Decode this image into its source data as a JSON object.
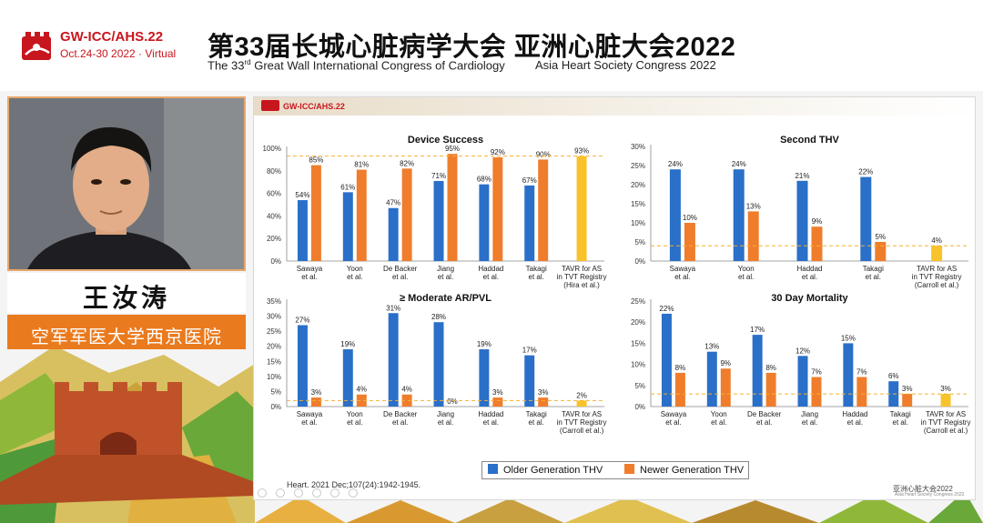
{
  "header": {
    "logo_line1": "GW-ICC/AHS.22",
    "logo_line2": "Oct.24-30 2022 · Virtual",
    "title_cn": "第33届长城心脏病学大会  亚洲心脏大会2022",
    "title_en1_pre": "The 33",
    "title_en1_sup": "rd",
    "title_en1_post": " Great Wall International Congress of Cardiology",
    "title_en2": "Asia Heart Society Congress 2022",
    "accent": "#c8161e"
  },
  "speaker": {
    "name": "王汝涛",
    "affiliation": "空军军医大学西京医院"
  },
  "slide": {
    "logo": "GW-ICC/AHS.22",
    "legend": [
      {
        "label": "Older Generation THV",
        "color": "#2a6fc8"
      },
      {
        "label": "Newer Generation THV",
        "color": "#ef7d2c"
      }
    ],
    "citation": "Heart. 2021 Dec;107(24):1942-1945.",
    "footer_logo": "亚洲心脏大会2022",
    "footer_sub": "Asia Heart Society Congress 2022"
  },
  "chart_data": [
    {
      "type": "bar",
      "title": "Device Success",
      "categories": [
        "Sawaya\net al.",
        "Yoon\net al.",
        "De Backer\net al.",
        "Jiang\net al.",
        "Haddad\net al.",
        "Takagi\net al.",
        "TAVR for AS\nin TVT Registry\n(Hira et al.)"
      ],
      "series": [
        {
          "name": "Older Generation THV",
          "values": [
            54,
            61,
            47,
            71,
            68,
            67,
            null
          ]
        },
        {
          "name": "Newer Generation THV",
          "values": [
            85,
            81,
            82,
            95,
            92,
            90,
            null
          ]
        },
        {
          "name": "TAVR",
          "values": [
            null,
            null,
            null,
            null,
            null,
            null,
            93
          ]
        }
      ],
      "reference_line": 93,
      "ylim": [
        0,
        100
      ],
      "yticks": [
        "0%",
        "20%",
        "40%",
        "60%",
        "80%",
        "100%"
      ],
      "value_suffix": "%"
    },
    {
      "type": "bar",
      "title": "Second THV",
      "categories": [
        "Sawaya\net al.",
        "Yoon\net al.",
        "Haddad\net al.",
        "Takagi\net al.",
        "TAVR for AS\nin TVT Registry\n(Carroll et al.)"
      ],
      "series": [
        {
          "name": "Older Generation THV",
          "values": [
            24,
            24,
            21,
            22,
            null
          ]
        },
        {
          "name": "Newer Generation THV",
          "values": [
            10,
            13,
            9,
            5,
            null
          ]
        },
        {
          "name": "TAVR",
          "values": [
            null,
            null,
            null,
            null,
            4
          ]
        }
      ],
      "reference_line": 4,
      "ylim": [
        0,
        30
      ],
      "yticks": [
        "0%",
        "5%",
        "10%",
        "15%",
        "20%",
        "25%",
        "30%"
      ],
      "value_suffix": "%"
    },
    {
      "type": "bar",
      "title": "≥ Moderate AR/PVL",
      "categories": [
        "Sawaya\net al.",
        "Yoon\net al.",
        "De Backer\net al.",
        "Jiang\net al.",
        "Haddad\net al.",
        "Takagi\net al.",
        "TAVR for AS\nin TVT Registry\n(Carroll et al.)"
      ],
      "series": [
        {
          "name": "Older Generation THV",
          "values": [
            27,
            19,
            31,
            28,
            19,
            17,
            null
          ]
        },
        {
          "name": "Newer Generation THV",
          "values": [
            3,
            4,
            4,
            0,
            3,
            3,
            null
          ]
        },
        {
          "name": "TAVR",
          "values": [
            null,
            null,
            null,
            null,
            null,
            null,
            2
          ]
        }
      ],
      "reference_line": 2,
      "ylim": [
        0,
        35
      ],
      "yticks": [
        "0%",
        "5%",
        "10%",
        "15%",
        "20%",
        "25%",
        "30%",
        "35%"
      ],
      "value_suffix": "%"
    },
    {
      "type": "bar",
      "title": "30 Day Mortality",
      "categories": [
        "Sawaya\net al.",
        "Yoon\net al.",
        "De Backer\net al.",
        "Jiang\net al.",
        "Haddad\net al.",
        "Takagi\net al.",
        "TAVR for AS\nin TVT Registry\n(Carroll et al.)"
      ],
      "series": [
        {
          "name": "Older Generation THV",
          "values": [
            22,
            13,
            17,
            12,
            15,
            6,
            null
          ]
        },
        {
          "name": "Newer Generation THV",
          "values": [
            8,
            9,
            8,
            7,
            7,
            3,
            null
          ]
        },
        {
          "name": "TAVR",
          "values": [
            null,
            null,
            null,
            null,
            null,
            null,
            3
          ]
        }
      ],
      "reference_line": 3,
      "ylim": [
        0,
        25
      ],
      "yticks": [
        "0%",
        "5%",
        "10%",
        "15%",
        "20%",
        "25%"
      ],
      "value_suffix": "%"
    }
  ],
  "colors": {
    "older": "#2a6fc8",
    "newer": "#ef7d2c",
    "tavr": "#f8c32a",
    "refline": "#f5b030"
  }
}
